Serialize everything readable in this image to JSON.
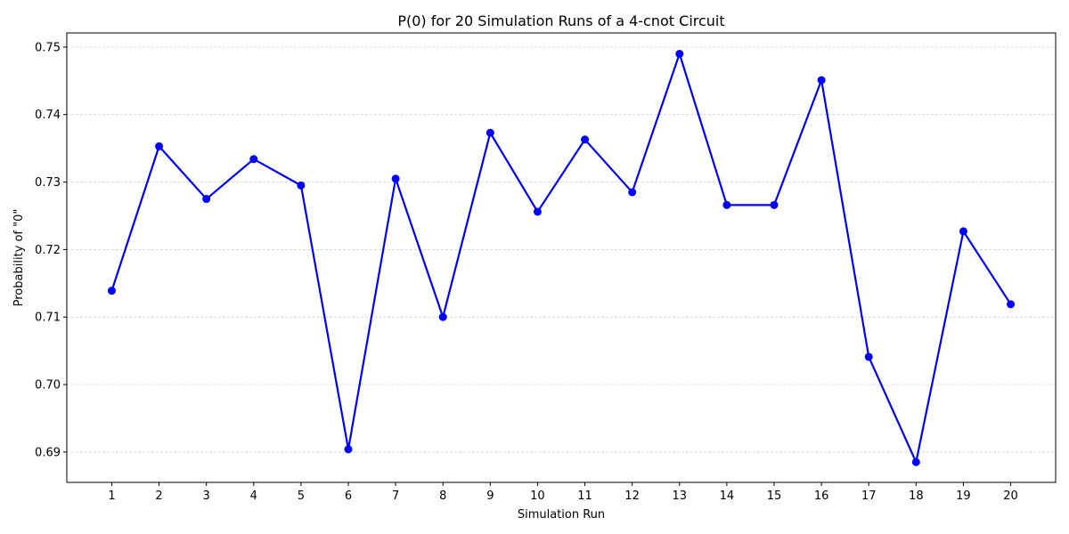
{
  "chart_data": {
    "type": "line",
    "title": "P(0) for 20 Simulation Runs of a 4-cnot Circuit",
    "xlabel": "Simulation Run",
    "ylabel": "Probability of \"0\"",
    "x": [
      1,
      2,
      3,
      4,
      5,
      6,
      7,
      8,
      9,
      10,
      11,
      12,
      13,
      14,
      15,
      16,
      17,
      18,
      19,
      20
    ],
    "x_tick_labels": [
      "1",
      "2",
      "3",
      "4",
      "5",
      "6",
      "7",
      "8",
      "9",
      "10",
      "11",
      "12",
      "13",
      "14",
      "15",
      "16",
      "17",
      "18",
      "19",
      "20"
    ],
    "series": [
      {
        "name": "P(0)",
        "color": "#0000ff",
        "marker": "circle",
        "values": [
          0.7139,
          0.7353,
          0.7275,
          0.7334,
          0.7295,
          0.6904,
          0.7305,
          0.71,
          0.7373,
          0.7256,
          0.7363,
          0.7285,
          0.749,
          0.7266,
          0.7266,
          0.7451,
          0.7041,
          0.6885,
          0.7227,
          0.7119
        ]
      }
    ],
    "y_ticks": [
      0.69,
      0.7,
      0.71,
      0.72,
      0.73,
      0.74,
      0.75
    ],
    "y_tick_labels": [
      "0.69",
      "0.70",
      "0.71",
      "0.72",
      "0.73",
      "0.74",
      "0.75"
    ],
    "xlim": [
      0.05,
      20.95
    ],
    "ylim": [
      0.6855,
      0.7521
    ],
    "grid": "horizontal dashed",
    "grid_color": "#cccccc"
  }
}
